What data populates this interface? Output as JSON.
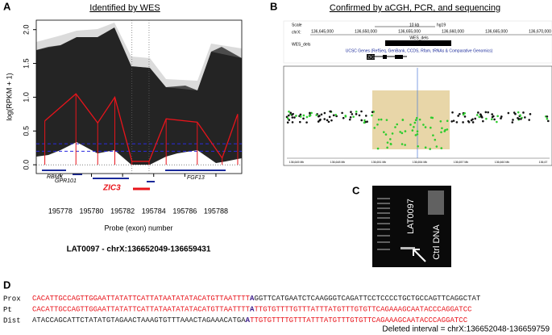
{
  "chart_data": {
    "type": "line",
    "label": "A",
    "title": "Identified by WES",
    "x_label": "Probe (exon) number",
    "y_label": "log(RPKM + 1)",
    "caption": "LAT0097 - chrX:136652049-136659431",
    "x": [
      195777,
      195779,
      195780.4,
      195781.5,
      195782.6,
      195783.7,
      195784.8,
      195786.8,
      195788.4,
      195789.4
    ],
    "values": [
      0.65,
      1.05,
      0.62,
      1.0,
      0.05,
      0.05,
      0.68,
      0.63,
      0.1,
      0.75
    ],
    "color": "#e8141b",
    "hlines": [
      0.31,
      0.2
    ],
    "hline_color": "#2a2ae0",
    "vlines": [
      195782.6,
      195783.7
    ],
    "xlim": [
      195776.45,
      195789.66
    ],
    "ylim": [
      -0.13,
      2.14
    ],
    "xticks": [
      195778,
      195780,
      195782,
      195784,
      195786,
      195788
    ],
    "yticks": [
      {
        "value": 0,
        "label": "0.0"
      },
      {
        "value": 0.5,
        "label": "0.5"
      },
      {
        "value": 1,
        "label": "1.0"
      },
      {
        "value": 1.5,
        "label": "1.5"
      },
      {
        "value": 2,
        "label": "2.0"
      }
    ],
    "genes": [
      "RBMX",
      "GPR101",
      "ZIC3",
      "FGF13"
    ]
  },
  "panel_b": {
    "label": "B",
    "title": "Confirmed by aCGH, PCR, and sequencing",
    "scale": "Scale",
    "scale_bar": "10 kb",
    "assembly": "hg19",
    "chrom": "chrX:",
    "positions": [
      "136,645,000",
      "136,650,000",
      "136,655,000",
      "136,660,000",
      "136,665,000",
      "136,670,000"
    ],
    "track": "WES_dels",
    "track_bar": "WES_dels",
    "genes_track": "UCSC Genes (RefSeq, GenBank, CCDS, Rfam, tRNAs & Comparative Genomics)",
    "gene": "ZIC3",
    "acgh_axis": [
      "136,645 Mb",
      "136,648 Mb",
      "136,651 Mb",
      "136,654 Mb",
      "136,657 Mb",
      "136,660 Mb",
      "136,67"
    ]
  },
  "panel_c": {
    "label": "C",
    "lane_sample": "LAT0097",
    "lane_ctrl": "Ctrl DNA"
  },
  "panel_d": {
    "label": "D",
    "rows": [
      {
        "name": "Prox",
        "seq_left": "CACATTGCCAGTTGGAATTATATTCATTATAATATATACATGTTAATTTT",
        "junction": "A",
        "seq_right": "GGTTCATGAATCTCAAGGGTCAGATTCCTCCCCTGCTGCCAGTTCAGGCTAT"
      },
      {
        "name": "Pt",
        "seq_left": "CACATTGCCAGTTGGAATTATATTCATTATAATATATACATGTTAATTTT",
        "junction": "A",
        "seq_right": "TTGTGTTTTGTTTATTTATGTTTGTGTTCAGAAAGCAATACCCAGGATCC"
      },
      {
        "name": "Dist",
        "seq_left": "ATACCAGCATTCTATATGTAGAACTAAAGTGTTTAAACTAGAAACATGA",
        "junction": "A",
        "seq_right": "TTGTGTTTTGTTTATTTATGTTTGTGTTCAGAAAGCAATACCCAGGATCC"
      }
    ],
    "deleted": "Deleted interval = chrX:136652048-136659759"
  }
}
